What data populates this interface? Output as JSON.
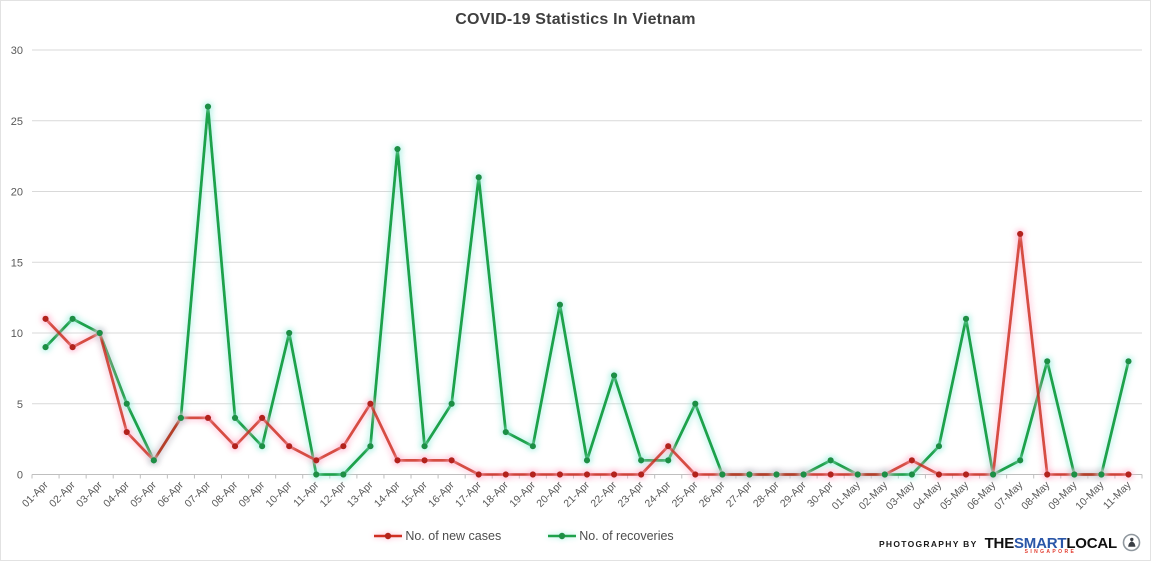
{
  "title": "COVID-19 Statistics In Vietnam",
  "chart_data": {
    "type": "line",
    "title": "COVID-19 Statistics In Vietnam",
    "x": [
      "01-Apr",
      "02-Apr",
      "03-Apr",
      "04-Apr",
      "05-Apr",
      "06-Apr",
      "07-Apr",
      "08-Apr",
      "09-Apr",
      "10-Apr",
      "11-Apr",
      "12-Apr",
      "13-Apr",
      "14-Apr",
      "15-Apr",
      "16-Apr",
      "17-Apr",
      "18-Apr",
      "19-Apr",
      "20-Apr",
      "21-Apr",
      "22-Apr",
      "23-Apr",
      "24-Apr",
      "25-Apr",
      "26-Apr",
      "27-Apr",
      "28-Apr",
      "29-Apr",
      "30-Apr",
      "01-May",
      "02-May",
      "03-May",
      "04-May",
      "05-May",
      "06-May",
      "07-May",
      "08-May",
      "09-May",
      "10-May",
      "11-May"
    ],
    "series": [
      {
        "name": "No. of new cases",
        "color": "#d02e22",
        "marker_color": "#b3241a",
        "glow": "#ffb0cb",
        "values": [
          11,
          9,
          10,
          3,
          1,
          4,
          4,
          2,
          4,
          2,
          1,
          2,
          5,
          1,
          1,
          1,
          0,
          0,
          0,
          0,
          0,
          0,
          0,
          2,
          0,
          0,
          0,
          0,
          0,
          0,
          0,
          0,
          1,
          0,
          0,
          0,
          17,
          0,
          0,
          0,
          0
        ]
      },
      {
        "name": "No. of recoveries",
        "color": "#1fa24c",
        "marker_color": "#1d8f44",
        "glow": "#a6efe1",
        "values": [
          9,
          11,
          10,
          5,
          1,
          4,
          26,
          4,
          2,
          10,
          0,
          0,
          2,
          23,
          2,
          5,
          21,
          3,
          2,
          12,
          1,
          7,
          1,
          1,
          5,
          0,
          0,
          0,
          0,
          1,
          0,
          0,
          0,
          2,
          11,
          0,
          1,
          8,
          0,
          0,
          8
        ]
      }
    ],
    "ylim": [
      0,
      30
    ],
    "yticks": [
      0,
      5,
      10,
      15,
      20,
      25,
      30
    ],
    "grid": true,
    "legend_position": "bottom-center",
    "axis_text_color": "#595959",
    "grid_color": "#d9d9d9",
    "axis_line_color": "#bfbfbf"
  },
  "credit": {
    "prefix": "PHOTOGRAPHY BY",
    "brand": {
      "the": "THE",
      "smart": "SMART",
      "local": "LOCAL",
      "sub": "SINGAPORE"
    }
  }
}
